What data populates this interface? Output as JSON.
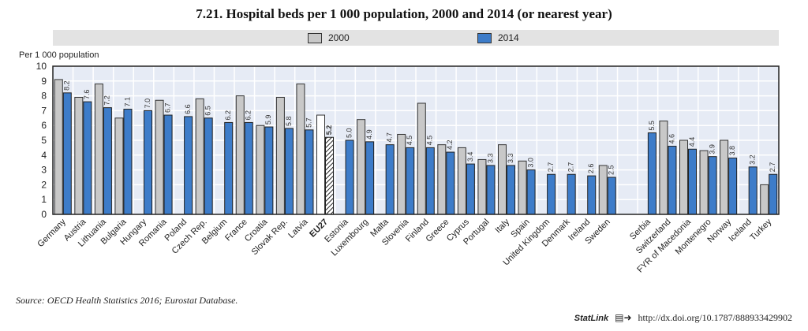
{
  "chart_data": {
    "type": "bar",
    "title": "7.21.  Hospital beds per 1 000 population, 2000 and 2014 (or nearest year)",
    "ylabel": "Per 1 000 population",
    "ylim": [
      0,
      10
    ],
    "yticks": [
      "0",
      "1",
      "2",
      "3",
      "4",
      "5",
      "6",
      "7",
      "8",
      "9",
      "10"
    ],
    "grid": true,
    "legend_position": "top",
    "colors": {
      "2000": "#c8c8c8",
      "2014": "#3d7cc9",
      "plot_bg": "#e6ebf5",
      "legend_bg": "#e3e3e3"
    },
    "categories": [
      "Germany",
      "Austria",
      "Lithuania",
      "Bulgaria",
      "Hungary",
      "Romania",
      "Poland",
      "Czech Rep.",
      "Belgium",
      "France",
      "Croatia",
      "Slovak Rep.",
      "Latvia",
      "EU27",
      "Estonia",
      "Luxembourg",
      "Malta",
      "Slovenia",
      "Finland",
      "Greece",
      "Cyprus",
      "Portugal",
      "Italy",
      "Spain",
      "United Kingdom",
      "Denmark",
      "Ireland",
      "Sweden",
      "",
      "Serbia",
      "Switzerland",
      "FYR of Macedonia",
      "Montenegro",
      "Norway",
      "Iceland",
      "Turkey"
    ],
    "highlight_category": "EU27",
    "series": [
      {
        "name": "2000",
        "values": [
          9.1,
          7.9,
          8.8,
          6.5,
          null,
          7.7,
          null,
          7.8,
          null,
          8.0,
          6.0,
          7.9,
          8.8,
          6.7,
          null,
          6.4,
          null,
          5.4,
          7.5,
          4.7,
          4.5,
          3.7,
          4.7,
          3.6,
          null,
          null,
          null,
          3.3,
          null,
          null,
          6.3,
          5.0,
          4.3,
          5.0,
          null,
          2.0
        ]
      },
      {
        "name": "2014",
        "values": [
          8.2,
          7.6,
          7.2,
          7.1,
          7.0,
          6.7,
          6.6,
          6.5,
          6.2,
          6.2,
          5.9,
          5.8,
          5.7,
          5.2,
          5.0,
          4.9,
          4.7,
          4.5,
          4.5,
          4.2,
          3.4,
          3.3,
          3.3,
          3.0,
          2.7,
          2.7,
          2.6,
          2.5,
          null,
          5.5,
          4.6,
          4.4,
          3.9,
          3.8,
          3.2,
          2.7
        ],
        "labels": [
          "8.2",
          "7.6",
          "7.2",
          "7.1",
          "7.0",
          "6.7",
          "6.6",
          "6.5",
          "6.2",
          "6.2",
          "5.9",
          "5.8",
          "5.7",
          "5.2",
          "5.0",
          "4.9",
          "4.7",
          "4.5",
          "4.5",
          "4.2",
          "3.4",
          "3.3",
          "3.3",
          "3.0",
          "2.7",
          "2.7",
          "2.6",
          "2.5",
          "",
          "5.5",
          "4.6",
          "4.4",
          "3.9",
          "3.8",
          "3.2",
          "2.7"
        ]
      }
    ]
  },
  "source": "Source:  OECD Health Statistics 2016; Eurostat Database.",
  "statlink": {
    "label": "StatLink",
    "url": "http://dx.doi.org/10.1787/888933429902"
  }
}
